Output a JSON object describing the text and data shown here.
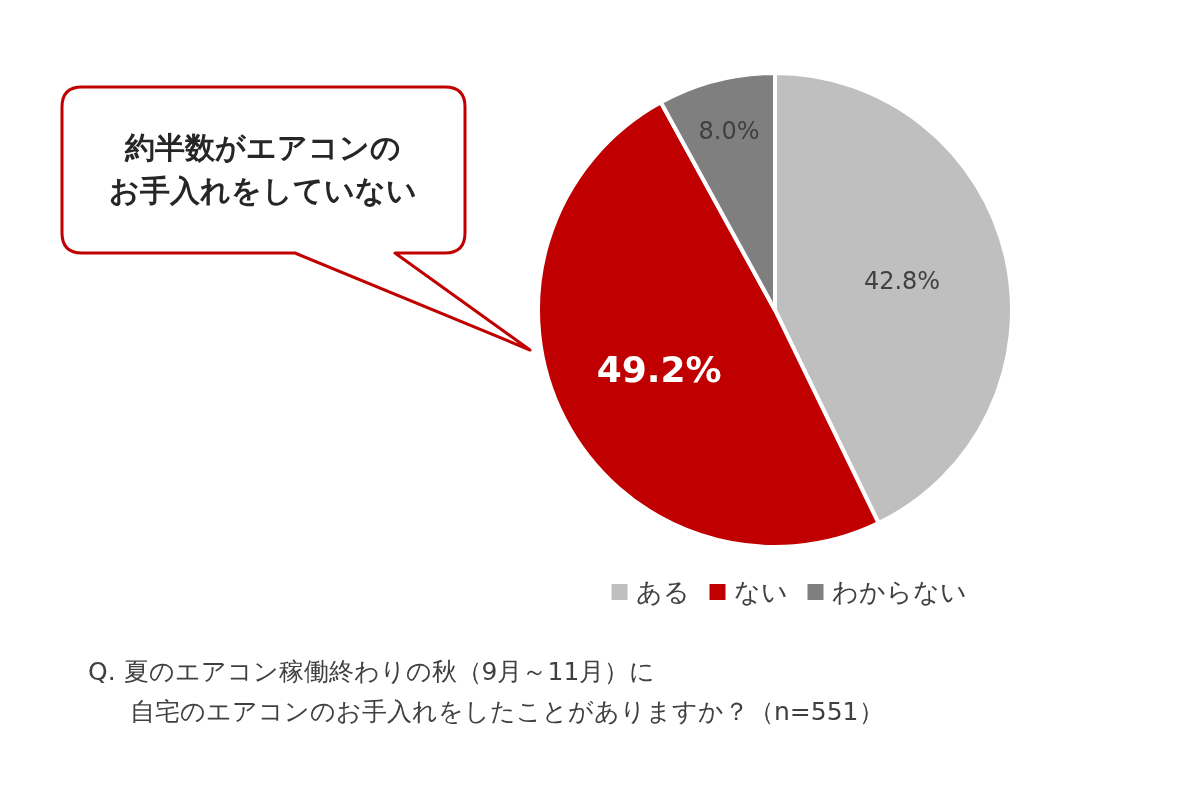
{
  "chart_data": {
    "type": "pie",
    "categories": [
      "ある",
      "ない",
      "わからない"
    ],
    "values": [
      42.8,
      49.2,
      8.0
    ],
    "colors": [
      "#bfbfbf",
      "#c00000",
      "#7f7f7f"
    ],
    "value_labels": [
      "42.8%",
      "49.2%",
      "8.0%"
    ],
    "legend": "bottom",
    "annotations": [
      "約半数がエアコンの",
      "お手入れをしていない",
      "Q. 夏のエアコン稼働終わりの秋（9月～11月）に",
      "自宅のエアコンのお手入れをしたことがありますか？（n=551）"
    ]
  }
}
